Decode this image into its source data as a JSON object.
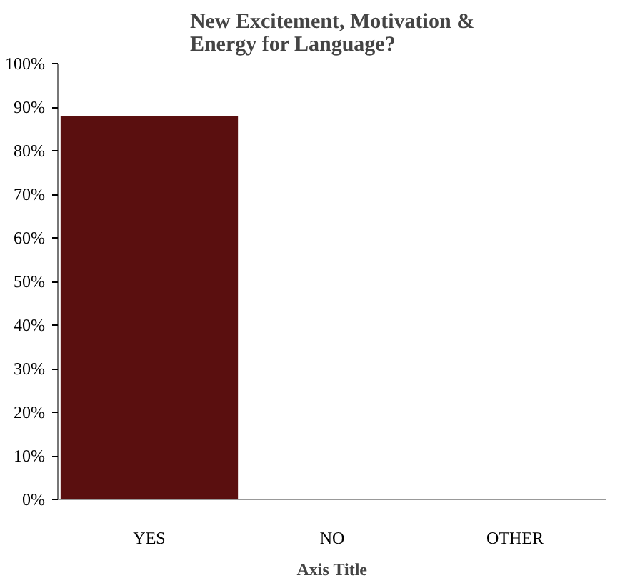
{
  "chart_data": {
    "type": "bar",
    "title": "New Excitement, Motivation &\nEnergy for Language?",
    "xlabel": "Axis Title",
    "categories": [
      "YES",
      "NO",
      "OTHER"
    ],
    "values": [
      88,
      0,
      0
    ],
    "color": "#5a0f0f",
    "ylim": [
      0,
      100
    ],
    "yticks": [
      {
        "value": 0,
        "label": "0%"
      },
      {
        "value": 10,
        "label": "10%"
      },
      {
        "value": 20,
        "label": "20%"
      },
      {
        "value": 30,
        "label": "30%"
      },
      {
        "value": 40,
        "label": "40%"
      },
      {
        "value": 50,
        "label": "50%"
      },
      {
        "value": 60,
        "label": "60%"
      },
      {
        "value": 70,
        "label": "70%"
      },
      {
        "value": 80,
        "label": "80%"
      },
      {
        "value": 90,
        "label": "90%"
      },
      {
        "value": 100,
        "label": "100%"
      }
    ],
    "grid": false
  }
}
